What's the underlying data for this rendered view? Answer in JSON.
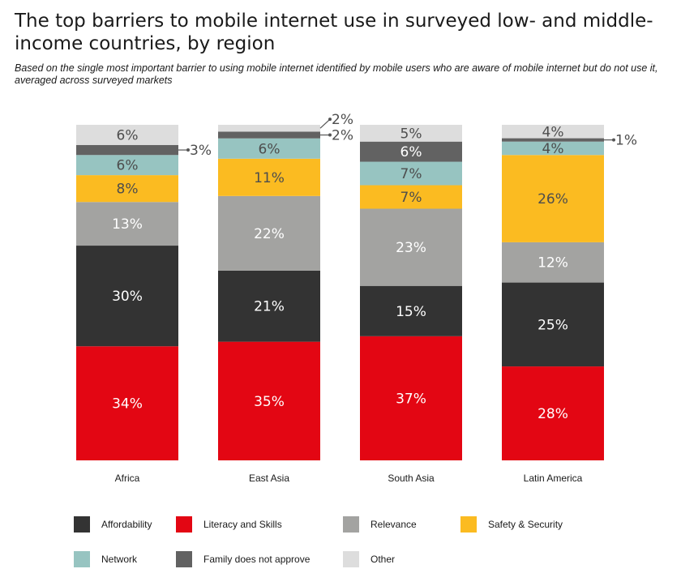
{
  "title": "The top barriers to mobile internet use in surveyed low- and middle-income countries, by region",
  "subtitle": "Based on the single most important barrier to using mobile internet identified by mobile users who are aware of mobile internet but do not use it, averaged across surveyed markets",
  "chart_data": {
    "type": "bar",
    "stacked": true,
    "categories": [
      "Africa",
      "East Asia",
      "South Asia",
      "Latin America"
    ],
    "series": [
      {
        "name": "Literacy and Skills",
        "color": "#e30613",
        "values": [
          34,
          35,
          37,
          28
        ],
        "labels": [
          "34%",
          "35%",
          "37%",
          "28%"
        ]
      },
      {
        "name": "Affordability",
        "color": "#333333",
        "values": [
          30,
          21,
          15,
          25
        ],
        "labels": [
          "30%",
          "21%",
          "15%",
          "25%"
        ]
      },
      {
        "name": "Relevance",
        "color": "#a3a3a1",
        "values": [
          13,
          22,
          23,
          12
        ],
        "labels": [
          "13%",
          "22%",
          "23%",
          "12%"
        ]
      },
      {
        "name": "Safety & Security",
        "color": "#fbbb21",
        "values": [
          8,
          11,
          7,
          26
        ],
        "labels": [
          "8%",
          "11%",
          "7%",
          "26%"
        ]
      },
      {
        "name": "Network",
        "color": "#97c4c1",
        "values": [
          6,
          6,
          7,
          4
        ],
        "labels": [
          "6%",
          "6%",
          "7%",
          "4%"
        ]
      },
      {
        "name": "Family does not approve",
        "color": "#626262",
        "values": [
          3,
          2,
          6,
          1
        ],
        "labels": [
          "3%",
          "2%",
          "6%",
          "1%"
        ]
      },
      {
        "name": "Other",
        "color": "#dddddd",
        "values": [
          6,
          2,
          5,
          4
        ],
        "labels": [
          "6%",
          "2%",
          "5%",
          "4%"
        ]
      }
    ],
    "ylim": [
      0,
      100
    ],
    "grid": false,
    "legend_position": "bottom",
    "legend_order": [
      "Affordability",
      "Literacy and Skills",
      "Relevance",
      "Safety & Security",
      "Network",
      "Family does not approve",
      "Other"
    ]
  }
}
